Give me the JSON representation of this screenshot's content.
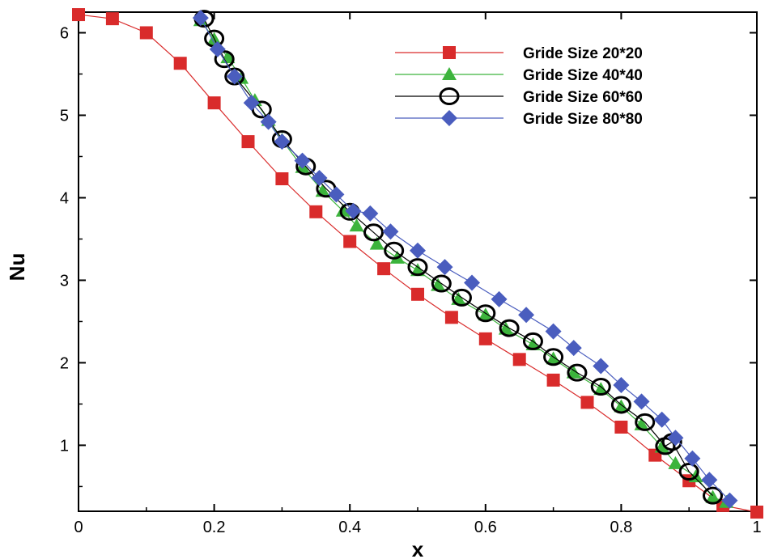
{
  "chart_data": {
    "type": "line",
    "title": "",
    "xlabel": "x",
    "ylabel": "Nu",
    "xlim": [
      0,
      1
    ],
    "ylim": [
      0.2,
      6.25
    ],
    "x_ticks": [
      0,
      0.2,
      0.4,
      0.6,
      0.8,
      1
    ],
    "x_tick_labels": [
      "0",
      "0.2",
      "0.4",
      "0.6",
      "0.8",
      "1"
    ],
    "y_ticks": [
      1,
      2,
      3,
      4,
      5,
      6
    ],
    "y_tick_labels": [
      "1",
      "2",
      "3",
      "4",
      "5",
      "6"
    ],
    "grid": false,
    "legend_position": "top-right",
    "series": [
      {
        "name": "Gride Size 20*20",
        "color": "#d92b2b",
        "marker": "square",
        "x": [
          0,
          0.05,
          0.1,
          0.15,
          0.2,
          0.25,
          0.3,
          0.35,
          0.4,
          0.45,
          0.5,
          0.55,
          0.6,
          0.65,
          0.7,
          0.75,
          0.8,
          0.85,
          0.9,
          0.95,
          1.0
        ],
        "y": [
          6.22,
          6.17,
          6.0,
          5.63,
          5.15,
          4.68,
          4.23,
          3.83,
          3.47,
          3.14,
          2.83,
          2.55,
          2.29,
          2.04,
          1.79,
          1.52,
          1.22,
          0.88,
          0.57,
          0.27,
          0.19
        ]
      },
      {
        "name": "Gride Size 40*40",
        "color": "#3cb43c",
        "marker": "triangle",
        "x": [
          0.18,
          0.2,
          0.22,
          0.24,
          0.26,
          0.28,
          0.3,
          0.33,
          0.36,
          0.39,
          0.41,
          0.44,
          0.47,
          0.5,
          0.53,
          0.56,
          0.6,
          0.63,
          0.67,
          0.7,
          0.73,
          0.77,
          0.8,
          0.83,
          0.86,
          0.88,
          0.91,
          0.935,
          0.955
        ],
        "y": [
          6.15,
          5.92,
          5.7,
          5.45,
          5.18,
          4.94,
          4.7,
          4.37,
          4.08,
          3.84,
          3.66,
          3.44,
          3.27,
          3.12,
          2.94,
          2.77,
          2.58,
          2.41,
          2.22,
          2.05,
          1.88,
          1.68,
          1.47,
          1.25,
          0.98,
          0.78,
          0.62,
          0.37,
          0.31
        ]
      },
      {
        "name": "Gride Size 60*60",
        "color": "#000000",
        "marker": "circle",
        "x": [
          0.185,
          0.2,
          0.215,
          0.23,
          0.27,
          0.3,
          0.335,
          0.365,
          0.4,
          0.435,
          0.465,
          0.5,
          0.535,
          0.565,
          0.6,
          0.635,
          0.67,
          0.7,
          0.735,
          0.77,
          0.8,
          0.835,
          0.865,
          0.875,
          0.9,
          0.935
        ],
        "y": [
          6.17,
          5.93,
          5.68,
          5.47,
          5.07,
          4.71,
          4.38,
          4.11,
          3.83,
          3.58,
          3.36,
          3.16,
          2.96,
          2.79,
          2.6,
          2.42,
          2.26,
          2.07,
          1.88,
          1.71,
          1.49,
          1.28,
          0.99,
          1.04,
          0.68,
          0.39
        ]
      },
      {
        "name": "Gride Size 80*80",
        "color": "#4a5dbe",
        "marker": "diamond",
        "x": [
          0.18,
          0.205,
          0.23,
          0.255,
          0.28,
          0.3,
          0.33,
          0.355,
          0.38,
          0.405,
          0.43,
          0.46,
          0.5,
          0.54,
          0.58,
          0.62,
          0.66,
          0.7,
          0.73,
          0.77,
          0.8,
          0.83,
          0.86,
          0.88,
          0.905,
          0.93,
          0.96
        ],
        "y": [
          6.18,
          5.8,
          5.47,
          5.15,
          4.92,
          4.68,
          4.45,
          4.24,
          4.04,
          3.84,
          3.81,
          3.59,
          3.36,
          3.16,
          2.97,
          2.77,
          2.58,
          2.38,
          2.18,
          1.96,
          1.73,
          1.53,
          1.31,
          1.09,
          0.84,
          0.58,
          0.33
        ]
      }
    ]
  }
}
